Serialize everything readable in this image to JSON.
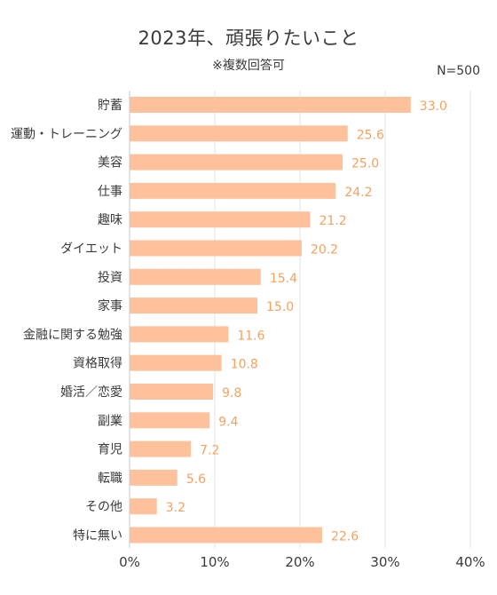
{
  "header": {
    "title": "2023年、頑張りたいこと",
    "subtitle": "※複数回答可",
    "sample_size": "N=500"
  },
  "colors": {
    "bar": "#fec19c",
    "value_label": "#f5a160",
    "grid": "#e3e3e3",
    "axis": "#c8c8c8"
  },
  "chart_data": {
    "type": "bar",
    "orientation": "horizontal",
    "title": "2023年、頑張りたいこと",
    "subtitle": "※複数回答可",
    "note": "N=500",
    "categories": [
      "貯蓄",
      "運動・トレーニング",
      "美容",
      "仕事",
      "趣味",
      "ダイエット",
      "投資",
      "家事",
      "金融に関する勉強",
      "資格取得",
      "婚活／恋愛",
      "副業",
      "育児",
      "転職",
      "その他",
      "特に無い"
    ],
    "values": [
      33.0,
      25.6,
      25.0,
      24.2,
      21.2,
      20.2,
      15.4,
      15.0,
      11.6,
      10.8,
      9.8,
      9.4,
      7.2,
      5.6,
      3.2,
      22.6
    ],
    "value_labels": [
      "33.0",
      "25.6",
      "25.0",
      "24.2",
      "21.2",
      "20.2",
      "15.4",
      "15.0",
      "11.6",
      "10.8",
      "9.8",
      "9.4",
      "7.2",
      "5.6",
      "3.2",
      "22.6"
    ],
    "xlim": [
      0,
      40
    ],
    "xticks": [
      "0%",
      "10%",
      "20%",
      "30%",
      "40%"
    ],
    "grid": true,
    "xlabel": "",
    "ylabel": ""
  }
}
